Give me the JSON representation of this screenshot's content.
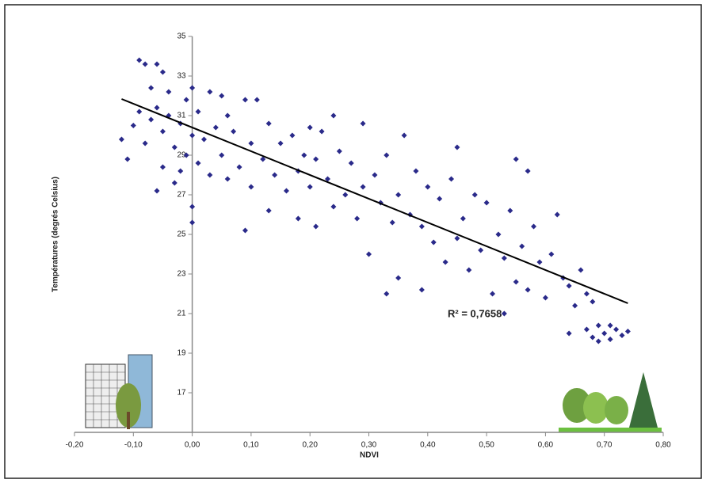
{
  "chart_data": {
    "type": "scatter",
    "ylabel": "Températures (degrés Celsius)",
    "xlabel": "NDVI",
    "annotation": "R² = 0,7658",
    "color": "#2a2a8a",
    "xlim": [
      -0.2,
      0.8
    ],
    "xticks": [
      {
        "value": -0.2,
        "label": "-0,20"
      },
      {
        "value": -0.1,
        "label": "-0,10"
      },
      {
        "value": 0,
        "label": "0,00"
      },
      {
        "value": 0.1,
        "label": "0,10"
      },
      {
        "value": 0.2,
        "label": "0,20"
      },
      {
        "value": 0.3,
        "label": "0,30"
      },
      {
        "value": 0.4,
        "label": "0,40"
      },
      {
        "value": 0.5,
        "label": "0,50"
      },
      {
        "value": 0.6,
        "label": "0,60"
      },
      {
        "value": 0.7,
        "label": "0,70"
      },
      {
        "value": 0.8,
        "label": "0,80"
      }
    ],
    "ylim": [
      15,
      35
    ],
    "yticks": [
      17,
      19,
      21,
      23,
      25,
      27,
      29,
      31,
      33,
      35
    ],
    "trendline": {
      "x": [
        -0.12,
        0.74
      ],
      "y": [
        31.84,
        21.52
      ]
    },
    "x": [
      -0.12,
      -0.11,
      -0.1,
      -0.09,
      -0.09,
      -0.08,
      -0.08,
      -0.07,
      -0.07,
      -0.06,
      -0.06,
      -0.06,
      -0.05,
      -0.05,
      -0.05,
      -0.04,
      -0.04,
      -0.03,
      -0.03,
      -0.02,
      -0.02,
      -0.01,
      -0.01,
      0.0,
      0.0,
      0.0,
      0.0,
      0.01,
      0.01,
      0.02,
      0.03,
      0.03,
      0.04,
      0.05,
      0.05,
      0.06,
      0.06,
      0.07,
      0.08,
      0.09,
      0.09,
      0.1,
      0.1,
      0.11,
      0.12,
      0.13,
      0.13,
      0.14,
      0.15,
      0.16,
      0.17,
      0.18,
      0.18,
      0.19,
      0.2,
      0.2,
      0.21,
      0.21,
      0.22,
      0.23,
      0.24,
      0.24,
      0.25,
      0.26,
      0.27,
      0.28,
      0.29,
      0.29,
      0.3,
      0.31,
      0.32,
      0.33,
      0.33,
      0.34,
      0.35,
      0.35,
      0.36,
      0.37,
      0.38,
      0.39,
      0.39,
      0.4,
      0.41,
      0.42,
      0.43,
      0.44,
      0.45,
      0.45,
      0.46,
      0.47,
      0.48,
      0.49,
      0.5,
      0.51,
      0.52,
      0.53,
      0.53,
      0.54,
      0.55,
      0.55,
      0.56,
      0.57,
      0.57,
      0.58,
      0.59,
      0.6,
      0.61,
      0.62,
      0.63,
      0.64,
      0.64,
      0.65,
      0.66,
      0.67,
      0.67,
      0.68,
      0.68,
      0.69,
      0.69,
      0.7,
      0.71,
      0.71,
      0.72,
      0.73,
      0.74
    ],
    "values": [
      29.8,
      28.8,
      30.5,
      33.8,
      31.2,
      33.6,
      29.6,
      32.4,
      30.8,
      33.6,
      31.4,
      27.2,
      33.2,
      30.2,
      28.4,
      32.2,
      31.0,
      29.4,
      27.6,
      30.6,
      28.2,
      31.8,
      29.0,
      32.4,
      30.0,
      26.4,
      25.6,
      31.2,
      28.6,
      29.8,
      32.2,
      28.0,
      30.4,
      32.0,
      29.0,
      31.0,
      27.8,
      30.2,
      28.4,
      31.8,
      25.2,
      29.6,
      27.4,
      31.8,
      28.8,
      30.6,
      26.2,
      28.0,
      29.6,
      27.2,
      30.0,
      28.2,
      25.8,
      29.0,
      30.4,
      27.4,
      28.8,
      25.4,
      30.2,
      27.8,
      31.0,
      26.4,
      29.2,
      27.0,
      28.6,
      25.8,
      30.6,
      27.4,
      24.0,
      28.0,
      26.6,
      22.0,
      29.0,
      25.6,
      27.0,
      22.8,
      30.0,
      26.0,
      28.2,
      25.4,
      22.2,
      27.4,
      24.6,
      26.8,
      23.6,
      27.8,
      29.4,
      24.8,
      25.8,
      23.2,
      27.0,
      24.2,
      26.6,
      22.0,
      25.0,
      21.0,
      23.8,
      26.2,
      28.8,
      22.6,
      24.4,
      22.2,
      28.2,
      25.4,
      23.6,
      21.8,
      24.0,
      26.0,
      22.8,
      20.0,
      22.4,
      21.4,
      23.2,
      22.0,
      20.2,
      19.8,
      21.6,
      20.4,
      19.6,
      20.0,
      20.4,
      19.7,
      20.2,
      19.9,
      20.1
    ]
  }
}
